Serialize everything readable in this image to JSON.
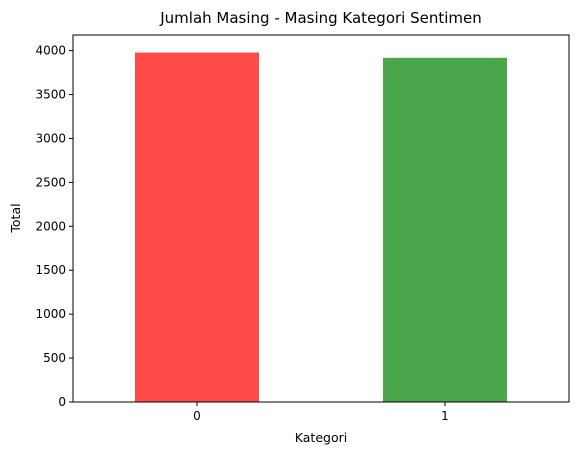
{
  "chart_data": {
    "type": "bar",
    "title": "Jumlah Masing - Masing Kategori Sentimen",
    "xlabel": "Kategori",
    "ylabel": "Total",
    "categories": [
      "0",
      "1"
    ],
    "values": [
      3978,
      3918
    ],
    "bar_colors": [
      "#ff4a4a",
      "#4ca64c"
    ],
    "ylim": [
      0,
      4178
    ],
    "yticks": [
      0,
      500,
      1000,
      1500,
      2000,
      2500,
      3000,
      3500,
      4000
    ],
    "grid": false,
    "legend": "none"
  }
}
